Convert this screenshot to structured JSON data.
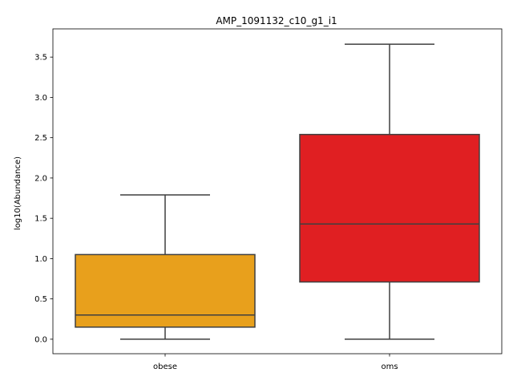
{
  "chart_data": {
    "type": "box",
    "title": "AMP_1091132_c10_g1_i1",
    "xlabel": "",
    "ylabel": "log10(Abundance)",
    "ylim": [
      -0.18,
      3.85
    ],
    "yticks": [
      "0.0",
      "0.5",
      "1.0",
      "1.5",
      "2.0",
      "2.5",
      "3.0",
      "3.5"
    ],
    "grid": false,
    "categories": [
      "obese",
      "oms"
    ],
    "boxes": [
      {
        "name": "obese",
        "min": 0.0,
        "q1": 0.15,
        "median": 0.3,
        "q3": 1.05,
        "max": 1.79,
        "color": "#e8a01c"
      },
      {
        "name": "oms",
        "min": 0.0,
        "q1": 0.71,
        "median": 1.43,
        "q3": 2.54,
        "max": 3.66,
        "color": "#e01f22"
      }
    ]
  }
}
